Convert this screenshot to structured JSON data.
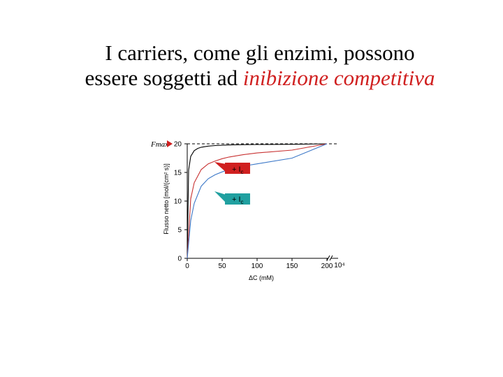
{
  "title": {
    "line1": "I carriers, come gli enzimi, possono",
    "line2_prefix": "essere soggetti ad ",
    "line2_highlight": "inibizione competitiva"
  },
  "chart_data": {
    "type": "line",
    "xlabel": "ΔC (mM)",
    "ylabel": "Flusso netto [mol/(cm² s)]",
    "x_ticks": [
      "0",
      "50",
      "100",
      "150",
      "200"
    ],
    "x_break_label": "10⁴",
    "y_ticks": [
      "0",
      "5",
      "10",
      "15",
      "20"
    ],
    "xlim": [
      0,
      200
    ],
    "ylim": [
      0,
      20
    ],
    "fmax_label": "Fmax",
    "fmax_value": 20,
    "series": [
      {
        "color": "#000000",
        "x": [
          0,
          2,
          5,
          10,
          15,
          20,
          30,
          40,
          60,
          80,
          100,
          150,
          200
        ],
        "y": [
          0,
          15.4,
          17.8,
          18.8,
          19.2,
          19.4,
          19.6,
          19.7,
          19.8,
          19.85,
          19.88,
          19.92,
          20
        ]
      },
      {
        "color": "#c83232",
        "x": [
          0,
          5,
          10,
          20,
          30,
          40,
          50,
          60,
          80,
          100,
          150,
          200
        ],
        "y": [
          0,
          10.4,
          13.2,
          15.5,
          16.5,
          17.0,
          17.4,
          17.7,
          18.1,
          18.4,
          18.9,
          20
        ]
      },
      {
        "color": "#3c78c8",
        "x": [
          0,
          5,
          10,
          20,
          30,
          40,
          50,
          60,
          80,
          100,
          150,
          200
        ],
        "y": [
          0,
          6.6,
          9.6,
          12.6,
          13.9,
          14.6,
          15.1,
          15.5,
          16.1,
          16.5,
          17.5,
          20
        ]
      }
    ],
    "annotations": [
      {
        "text": "+ I",
        "subscript": "c",
        "arrow_color": "#d02020",
        "series_index": 1
      },
      {
        "text": "+ I",
        "subscript": "c",
        "arrow_color": "#20a0a0",
        "series_index": 2
      }
    ],
    "grid": false
  }
}
